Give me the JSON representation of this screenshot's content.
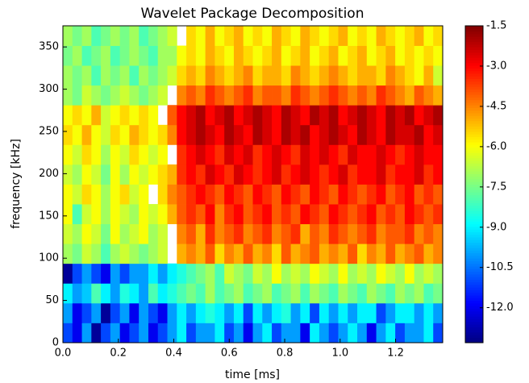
{
  "chart_data": {
    "type": "heatmap",
    "title": "Wavelet Package Decomposition",
    "x_label": "time [ms]",
    "y_label": "frequency [kHz]",
    "xlim": [
      0,
      1.37
    ],
    "ylim": [
      0,
      375
    ],
    "xticks": [
      {
        "value": 0,
        "label": "0.0"
      },
      0.2,
      0.4,
      0.6,
      0.8,
      {
        "value": 1,
        "label": "1.0"
      },
      1.2
    ],
    "yticks": [
      0,
      50,
      100,
      150,
      200,
      250,
      300,
      350
    ],
    "colormap": "jet",
    "clim": [
      -13.3,
      -1.5
    ],
    "cticks": [
      -1.5,
      {
        "value": -3,
        "label": "-3.0"
      },
      -4.5,
      {
        "value": -6,
        "label": "-6.0"
      },
      -7.5,
      {
        "value": -9,
        "label": "-9.0"
      },
      -10.5,
      {
        "value": -12,
        "label": "-12.0"
      }
    ],
    "values": [
      [
        -11,
        -12,
        -10,
        -13,
        -11,
        -10,
        -12,
        -11,
        -10,
        -12,
        -11,
        -10,
        -9,
        -11,
        -10,
        -10,
        -9,
        -11,
        -10,
        -12,
        -10,
        -9,
        -11,
        -10,
        -10,
        -12,
        -9,
        -10,
        -11,
        -10,
        -9,
        -10,
        -12,
        -10,
        -9,
        -11,
        -10,
        -10,
        -9,
        -11
      ],
      [
        -10,
        -12,
        -11,
        -10,
        -13,
        -11,
        -10,
        -12,
        -10,
        -11,
        -12,
        -10,
        -9,
        -10,
        -9,
        -8.5,
        -9,
        -10,
        -9,
        -11,
        -9,
        -10,
        -9,
        -8.5,
        -10,
        -9,
        -11,
        -9,
        -10,
        -9,
        -10,
        -9,
        -9,
        -11,
        -10,
        -9,
        -9,
        -10,
        -9,
        -10
      ],
      [
        -9,
        -10,
        -9.5,
        -8,
        -9,
        -10,
        -8.5,
        -9,
        -10,
        -8,
        -9,
        -8.5,
        -8,
        -7.5,
        -8,
        -7,
        -8,
        -7.5,
        -7,
        -8,
        -7.5,
        -7,
        -8,
        -7.5,
        -7,
        -8,
        -7,
        -7.5,
        -8,
        -7,
        -7.5,
        -8,
        -7,
        -7.5,
        -8,
        -7,
        -7.5,
        -7,
        -8,
        -7.5
      ],
      [
        -13,
        -11,
        -10,
        -11,
        -12,
        -10,
        -11,
        -10,
        -10,
        -9,
        -10,
        -9,
        -8.5,
        -8,
        -7.5,
        -7,
        -8,
        -6.5,
        -7,
        -7.5,
        -6.5,
        -7,
        -6,
        -7,
        -6.5,
        -7,
        -6,
        -6.5,
        -7,
        -6,
        -7,
        -6.5,
        -7,
        -6,
        -6.5,
        -7,
        -6,
        -7,
        -6.5,
        -7
      ],
      [
        -7,
        -7.5,
        -6.5,
        -7,
        -8,
        -7,
        -6.5,
        -7,
        -7.5,
        -7,
        -6.5,
        null,
        -5,
        -4.5,
        -5,
        -4,
        -5.5,
        -4.5,
        -5,
        -4,
        -5,
        -4.5,
        -5.5,
        -4,
        -5,
        -4.5,
        -4,
        -5,
        -4.5,
        -5,
        -4,
        -5.5,
        -4.5,
        -5,
        -4,
        -5,
        -4.5,
        -4,
        -5,
        -4.5
      ],
      [
        -6.5,
        -7,
        -6,
        -6.5,
        -7.5,
        -6,
        -7,
        -6.5,
        -6,
        -7,
        -6.5,
        null,
        -4.5,
        -4,
        -5,
        -3.5,
        -4.5,
        -4,
        -3.5,
        -4.5,
        -4,
        -3.5,
        -4.5,
        -4,
        -3.5,
        -5,
        -4,
        -4.5,
        -3.5,
        -4,
        -4.5,
        -4,
        -3.5,
        -4.5,
        -4,
        -4,
        -3.5,
        -4.5,
        -4,
        -4.5
      ],
      [
        -6,
        -8,
        -6.5,
        -6,
        -7,
        -6,
        -6.5,
        -7,
        -6,
        -6.5,
        -6,
        -5,
        -4,
        -3.5,
        -4,
        -3,
        -4.5,
        -3.5,
        -3,
        -4,
        -3.5,
        -3,
        -4,
        -3.5,
        -4,
        -3,
        -3.5,
        -4,
        -3,
        -3.5,
        -4,
        -3.5,
        -3,
        -4,
        -3.5,
        -4,
        -3,
        -3.5,
        -4,
        -3.5
      ],
      [
        -6,
        -6.5,
        -5.5,
        -6,
        -7,
        -6,
        -5.5,
        -6.5,
        -6,
        null,
        -5.5,
        -4.5,
        -4,
        -3.5,
        -3,
        -3.5,
        -4,
        -3,
        -3.5,
        -4,
        -3,
        -3.5,
        -4,
        -3,
        -3.5,
        -4,
        -3,
        -3.5,
        -4,
        -3,
        -3.5,
        -4,
        -3.5,
        -3,
        -4,
        -3.5,
        -3,
        -4,
        -3.5,
        -4
      ],
      [
        -6.5,
        -7,
        -6,
        -6.5,
        -7.5,
        -6,
        -7,
        -6,
        -6.5,
        -6,
        -5.5,
        -5,
        -3.5,
        -3,
        -3.5,
        -2.5,
        -3,
        -3.5,
        -2.5,
        -3,
        -3.5,
        -3,
        -2.5,
        -3.5,
        -3,
        -2.5,
        -3,
        -3.5,
        -3,
        -2.5,
        -3.5,
        -3,
        -3,
        -2.5,
        -3.5,
        -3,
        -3,
        -2.5,
        -3.5,
        -3
      ],
      [
        -6,
        -6.5,
        -5.5,
        -6,
        -7,
        -6,
        -6.5,
        -5.5,
        -6,
        -6.5,
        -6,
        null,
        -3.5,
        -3,
        -2.5,
        -3,
        -3.5,
        -2.5,
        -3,
        -2.5,
        -3.5,
        -3,
        -2.5,
        -3,
        -3.5,
        -2.5,
        -3,
        -2.5,
        -3,
        -3.5,
        -2.5,
        -3,
        -3,
        -2.5,
        -3,
        -3.5,
        -3,
        -2.5,
        -3,
        -3
      ],
      [
        -5.5,
        -6,
        -5,
        -6,
        -6.5,
        -5.5,
        -6,
        -5,
        -5.5,
        -6,
        -5.5,
        -4.5,
        -3,
        -2.5,
        -2,
        -2.5,
        -3,
        -2,
        -2.5,
        -3,
        -2,
        -2.5,
        -3,
        -2,
        -2.5,
        -2,
        -3,
        -2.5,
        -2,
        -2.5,
        -3,
        -2,
        -2.5,
        -3,
        -2,
        -2.5,
        -2.5,
        -2,
        -3,
        -2.5
      ],
      [
        -6,
        -5.5,
        -6,
        -5,
        -6.5,
        -6,
        -5.5,
        -6,
        -5.5,
        -6,
        null,
        -4,
        -3,
        -2.5,
        -2,
        -3,
        -2.5,
        -2,
        -3,
        -2.5,
        -2,
        -2.5,
        -3,
        -2,
        -2.5,
        -3,
        -2,
        -2.5,
        -2,
        -3,
        -2.5,
        -2,
        -2.5,
        -3,
        -2,
        -2.5,
        -2,
        -3,
        -2.5,
        -2
      ],
      [
        -7,
        -7.5,
        -6.5,
        -7,
        -7.5,
        -7,
        -6.5,
        -7,
        -7.5,
        -7,
        -6.5,
        null,
        -4.5,
        -4,
        -4.5,
        -3.5,
        -4,
        -4.5,
        -4,
        -3.5,
        -4.5,
        -4,
        -4,
        -4.5,
        -3.5,
        -4,
        -4.5,
        -4,
        -3.5,
        -4,
        -4.5,
        -4,
        -4.5,
        -3.5,
        -4,
        -4.5,
        -5,
        -4,
        -4.5,
        -5
      ],
      [
        -7,
        -7.5,
        -7,
        -8,
        -7,
        -7.5,
        -7,
        -8,
        -7,
        -7.5,
        -7,
        -6.5,
        -5.5,
        -5,
        -5.5,
        -4.5,
        -5,
        -5.5,
        -5,
        -4.5,
        -5.5,
        -5,
        -5,
        -5.5,
        -4.5,
        -5,
        -5.5,
        -5,
        -4.5,
        -5,
        -5.5,
        -5,
        -5,
        -5.5,
        -4.5,
        -5,
        -5.5,
        -6,
        -5,
        -6.5
      ],
      [
        -7.5,
        -7,
        -8,
        -7.5,
        -7,
        -8,
        -7.5,
        -7,
        -7.5,
        -8,
        -7,
        -7,
        -6,
        -5.5,
        -6,
        -5,
        -5.5,
        -6,
        -5,
        -5.5,
        -6,
        -5.5,
        -5,
        -6,
        -5.5,
        -5,
        -6,
        -5.5,
        -5,
        -6,
        -5.5,
        -5,
        -6,
        -5.5,
        -5,
        -6,
        -5.5,
        -6,
        -5.5,
        -6
      ],
      [
        -7,
        -7.5,
        -7,
        -8,
        -7.5,
        -7,
        -7.5,
        -7,
        -8,
        -7.5,
        -7,
        -6.5,
        null,
        -5.5,
        -6,
        -5,
        -6,
        -5.5,
        -5,
        -6,
        -5.5,
        -6,
        -5,
        -5.5,
        -6,
        -5,
        -5.5,
        -6,
        -5.5,
        -5,
        -6,
        -5.5,
        -6,
        -5,
        -5.5,
        -6,
        -5.5,
        -5,
        -6,
        -5.5
      ]
    ]
  }
}
